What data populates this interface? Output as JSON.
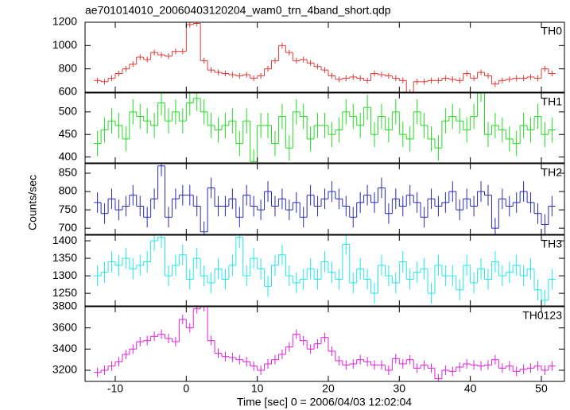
{
  "title": "ae701014010_20060403120204_wam0_trn_4band_short.qdp",
  "xlabel": "Time [sec] 0 = 2006/04/03 12:02:04",
  "ylabel": "Counts/sec",
  "x_axis": {
    "xlim": [
      -14.25,
      53.25
    ],
    "xticks": [
      -10,
      0,
      10,
      20,
      30,
      40,
      50
    ],
    "x": [
      -12.5,
      -11.5,
      -10.5,
      -9.5,
      -8.5,
      -7.5,
      -6.5,
      -5.5,
      -4.5,
      -3.5,
      -2.5,
      -1.5,
      -0.5,
      0.5,
      1.5,
      2.5,
      3.5,
      4.5,
      5.5,
      6.5,
      7.5,
      8.5,
      9.5,
      10.5,
      11.5,
      12.5,
      13.5,
      14.5,
      15.5,
      16.5,
      17.5,
      18.5,
      19.5,
      20.5,
      21.5,
      22.5,
      23.5,
      24.5,
      25.5,
      26.5,
      27.5,
      28.5,
      29.5,
      30.5,
      31.5,
      32.5,
      33.5,
      34.5,
      35.5,
      36.5,
      37.5,
      38.5,
      39.5,
      40.5,
      41.5,
      42.5,
      43.5,
      44.5,
      45.5,
      46.5,
      47.5,
      48.5,
      49.5,
      50.5,
      51.5
    ]
  },
  "chart_data": [
    {
      "type": "step",
      "name": "TH0",
      "color": "#e53935",
      "error": 25,
      "ylim": [
        600,
        1200
      ],
      "yticks": [
        600,
        800,
        1000,
        1200
      ],
      "values": [
        700,
        690,
        720,
        760,
        800,
        840,
        900,
        880,
        940,
        920,
        910,
        950,
        950,
        1180,
        1190,
        870,
        790,
        770,
        760,
        750,
        740,
        750,
        720,
        740,
        800,
        870,
        1000,
        940,
        870,
        880,
        850,
        820,
        790,
        740,
        710,
        720,
        730,
        720,
        700,
        760,
        750,
        740,
        720,
        700,
        600,
        690,
        690,
        700,
        700,
        720,
        710,
        700,
        760,
        720,
        770,
        740,
        670,
        700,
        710,
        720,
        720,
        730,
        720,
        800,
        760
      ]
    },
    {
      "type": "step",
      "name": "TH1",
      "color": "#22dd22",
      "error": 28,
      "ylim": [
        387,
        542
      ],
      "yticks": [
        400,
        450,
        500
      ],
      "values": [
        430,
        460,
        480,
        470,
        440,
        500,
        490,
        480,
        470,
        520,
        480,
        500,
        480,
        520,
        530,
        500,
        470,
        460,
        470,
        480,
        430,
        480,
        390,
        470,
        470,
        430,
        490,
        420,
        500,
        490,
        440,
        470,
        470,
        450,
        460,
        500,
        490,
        470,
        510,
        450,
        490,
        460,
        500,
        450,
        440,
        500,
        470,
        440,
        420,
        480,
        490,
        480,
        460,
        490,
        550,
        450,
        470,
        460,
        440,
        430,
        470,
        460,
        490,
        450,
        460
      ]
    },
    {
      "type": "step",
      "name": "TH2",
      "color": "#2a2ab5",
      "error": 28,
      "ylim": [
        683,
        876
      ],
      "yticks": [
        700,
        750,
        800,
        850
      ],
      "values": [
        770,
        740,
        780,
        750,
        760,
        790,
        760,
        730,
        780,
        870,
        730,
        780,
        790,
        790,
        760,
        690,
        810,
        760,
        760,
        780,
        730,
        790,
        760,
        750,
        800,
        760,
        780,
        750,
        770,
        730,
        790,
        760,
        780,
        800,
        780,
        760,
        730,
        770,
        790,
        770,
        810,
        740,
        780,
        760,
        790,
        770,
        730,
        780,
        760,
        770,
        800,
        750,
        780,
        760,
        800,
        790,
        700,
        780,
        760,
        770,
        800,
        770,
        740,
        710,
        760
      ]
    },
    {
      "type": "step",
      "name": "TH3",
      "color": "#22e8e8",
      "error": 30,
      "ylim": [
        1214,
        1416
      ],
      "yticks": [
        1250,
        1300,
        1350,
        1400
      ],
      "values": [
        1300,
        1310,
        1340,
        1330,
        1350,
        1320,
        1330,
        1340,
        1400,
        1410,
        1300,
        1330,
        1360,
        1290,
        1350,
        1300,
        1280,
        1320,
        1290,
        1330,
        1410,
        1300,
        1350,
        1320,
        1270,
        1330,
        1360,
        1300,
        1280,
        1290,
        1320,
        1290,
        1340,
        1310,
        1290,
        1390,
        1280,
        1320,
        1290,
        1250,
        1330,
        1300,
        1280,
        1340,
        1290,
        1310,
        1320,
        1250,
        1330,
        1300,
        1300,
        1260,
        1330,
        1280,
        1320,
        1290,
        1340,
        1300,
        1310,
        1330,
        1300,
        1320,
        1260,
        1230,
        1290
      ]
    },
    {
      "type": "step",
      "name": "TH0123",
      "color": "#e020e0",
      "error": 45,
      "ylim": [
        3095,
        3800
      ],
      "yticks": [
        3200,
        3400,
        3600,
        3800
      ],
      "values": [
        3180,
        3200,
        3240,
        3280,
        3350,
        3400,
        3470,
        3480,
        3520,
        3540,
        3500,
        3470,
        3680,
        3600,
        3780,
        3800,
        3480,
        3360,
        3330,
        3320,
        3300,
        3280,
        3240,
        3200,
        3260,
        3300,
        3350,
        3420,
        3540,
        3480,
        3400,
        3450,
        3510,
        3380,
        3290,
        3250,
        3260,
        3300,
        3280,
        3250,
        3250,
        3200,
        3310,
        3260,
        3300,
        3220,
        3250,
        3220,
        3120,
        3200,
        3190,
        3230,
        3260,
        3250,
        3240,
        3250,
        3300,
        3220,
        3240,
        3190,
        3210,
        3220,
        3240,
        3200,
        3240
      ]
    }
  ]
}
